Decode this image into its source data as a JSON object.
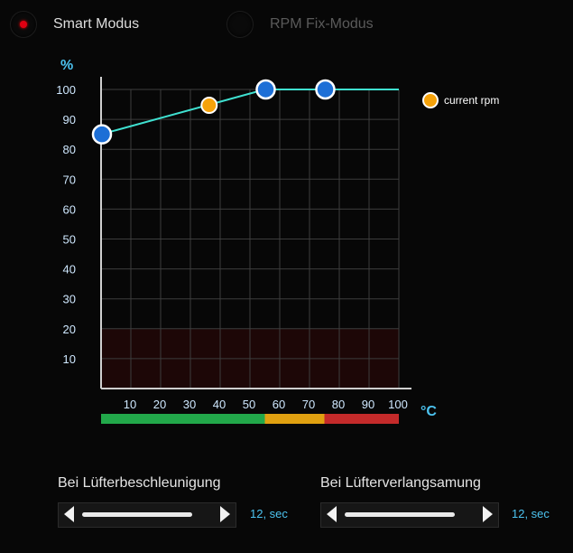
{
  "modes": {
    "smart": {
      "label": "Smart Modus",
      "selected": true
    },
    "rpm_fix": {
      "label": "RPM Fix-Modus",
      "selected": false
    }
  },
  "chart_data": {
    "type": "line",
    "y_unit_label": "%",
    "x_unit_label": "°C",
    "x_ticks": [
      10,
      20,
      30,
      40,
      50,
      60,
      70,
      80,
      90,
      100
    ],
    "y_ticks": [
      10,
      20,
      30,
      40,
      50,
      60,
      70,
      80,
      90,
      100
    ],
    "xlim": [
      0,
      100
    ],
    "ylim": [
      0,
      100
    ],
    "grid": true,
    "series": [
      {
        "name": "",
        "x": [
          0,
          55,
          75,
          100
        ],
        "y": [
          85,
          100,
          100,
          100
        ],
        "color": "#3fe0d0"
      }
    ],
    "control_points": [
      {
        "x": 0,
        "y": 85
      },
      {
        "x": 55,
        "y": 100
      },
      {
        "x": 75,
        "y": 100
      }
    ],
    "current_rpm": {
      "label": "current rpm",
      "x": 36,
      "y": 95,
      "color": "#f5a20a"
    },
    "temp_zones": [
      {
        "from": 0,
        "to": 55,
        "color": "#22a84a"
      },
      {
        "from": 55,
        "to": 75,
        "color": "#e0a010"
      },
      {
        "from": 75,
        "to": 100,
        "color": "#c42a2a"
      }
    ],
    "low_zone": {
      "from": 0,
      "to": 20,
      "color": "#1d0707"
    },
    "legend_position": "top-right"
  },
  "controls": {
    "acceleration": {
      "label": "Bei Lüfterbeschleunigung",
      "value": "12, sec"
    },
    "deceleration": {
      "label": "Bei Lüfterverlangsamung",
      "value": "12, sec"
    }
  }
}
